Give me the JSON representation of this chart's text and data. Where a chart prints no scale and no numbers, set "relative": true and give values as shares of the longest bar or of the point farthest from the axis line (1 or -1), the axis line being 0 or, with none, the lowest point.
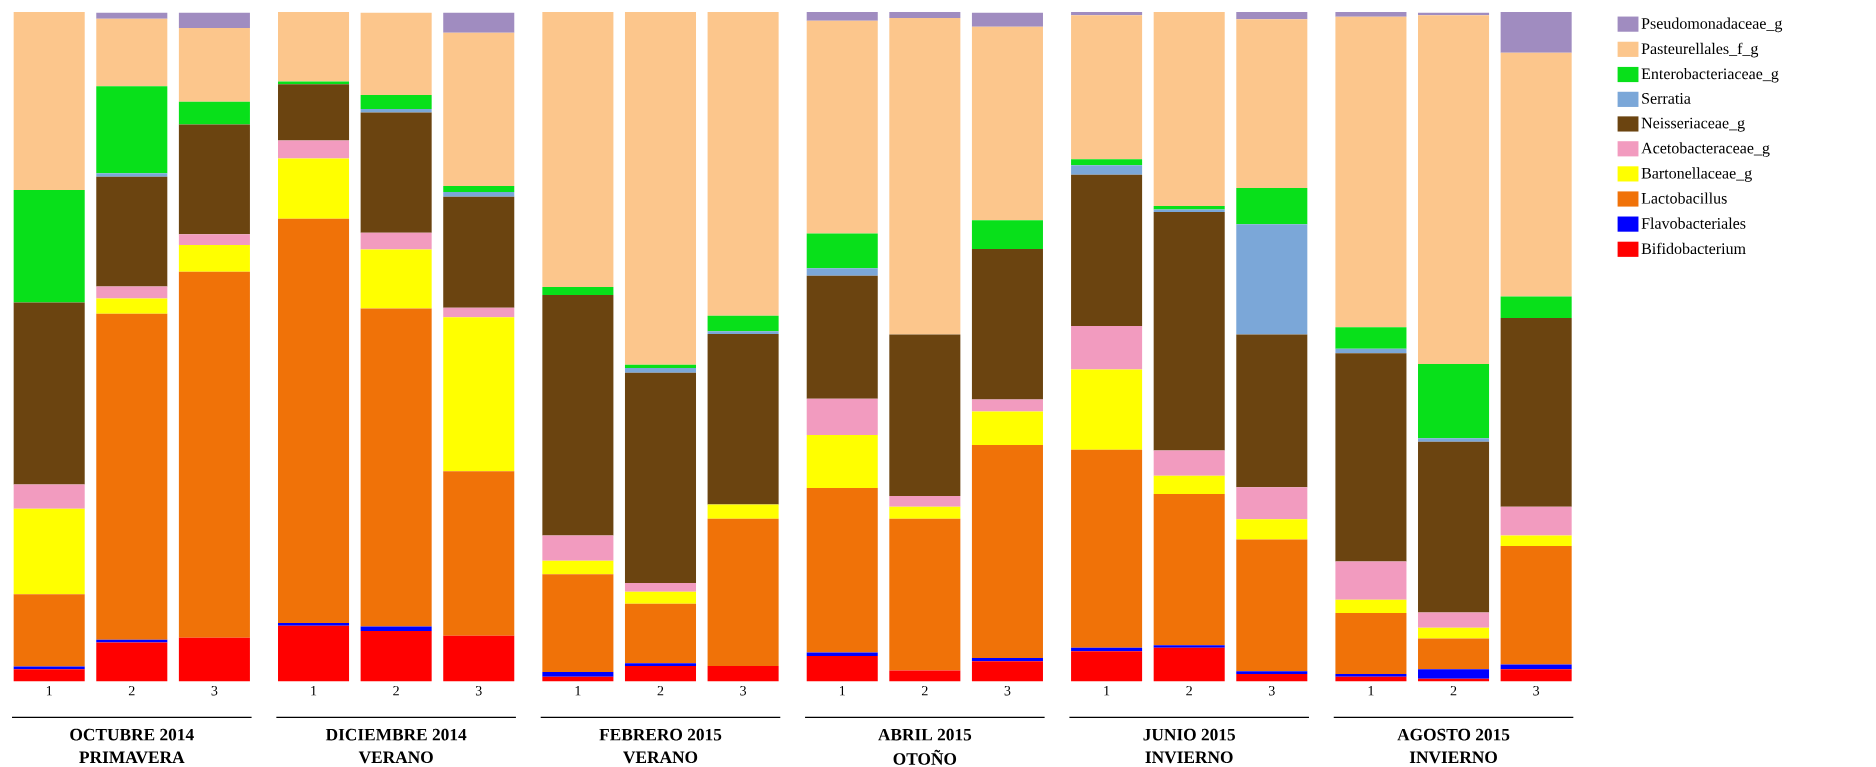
{
  "chart_data": {
    "type": "bar",
    "stacked": true,
    "relative": true,
    "legend": "top right",
    "categories": [
      "1",
      "2",
      "3",
      "1",
      "2",
      "3",
      "1",
      "2",
      "3",
      "1",
      "2",
      "3",
      "1",
      "2",
      "3",
      "1",
      "2",
      "3"
    ],
    "annotations": [
      "OCTUBRE 2014",
      "PRIMAVERA",
      "DICIEMBRE 2014",
      "VERANO",
      "FEBRERO 2015",
      "VERANO",
      "ABRIL 2015",
      "OTOÑO",
      "JUNIO 2015",
      "INVIERNO",
      "AGOSTO 2015",
      "INVIERNO"
    ],
    "series": [
      {
        "name": "Bifidobacterium",
        "color": "#ff0000",
        "values": [
          0.018,
          0.058,
          0.065,
          0.083,
          0.075,
          0.068,
          0.007,
          0.023,
          0.023,
          0.038,
          0.016,
          0.03,
          0.045,
          0.05,
          0.011,
          0.007,
          0.004,
          0.018
        ]
      },
      {
        "name": "Flavobacteriales",
        "color": "#0000ff",
        "values": [
          0.004,
          0.004,
          0,
          0.004,
          0.007,
          0,
          0.007,
          0.004,
          0,
          0.005,
          0,
          0.005,
          0.005,
          0.004,
          0.004,
          0.004,
          0.014,
          0.007
        ]
      },
      {
        "name": "Lactobacillus",
        "color": "#f07208",
        "values": [
          0.108,
          0.487,
          0.547,
          0.604,
          0.475,
          0.246,
          0.146,
          0.089,
          0.22,
          0.246,
          0.227,
          0.318,
          0.296,
          0.226,
          0.197,
          0.091,
          0.046,
          0.177
        ]
      },
      {
        "name": "Bartonellaceae_g",
        "color": "#ffff00",
        "values": [
          0.128,
          0.023,
          0.04,
          0.09,
          0.088,
          0.23,
          0.02,
          0.018,
          0.021,
          0.079,
          0.018,
          0.05,
          0.12,
          0.027,
          0.03,
          0.02,
          0.016,
          0.016
        ]
      },
      {
        "name": "Acetobacteraceae_g",
        "color": "#f29bbf",
        "values": [
          0.036,
          0.018,
          0.016,
          0.027,
          0.025,
          0.014,
          0.038,
          0.013,
          0,
          0.054,
          0.016,
          0.018,
          0.065,
          0.038,
          0.048,
          0.057,
          0.023,
          0.043
        ]
      },
      {
        "name": "Neisseriaceae_g",
        "color": "#6b4410",
        "values": [
          0.272,
          0.164,
          0.164,
          0.084,
          0.18,
          0.166,
          0.359,
          0.314,
          0.255,
          0.184,
          0.241,
          0.225,
          0.226,
          0.356,
          0.228,
          0.311,
          0.255,
          0.282
        ]
      },
      {
        "name": "Serratia",
        "color": "#7ba7d8",
        "values": [
          0,
          0.005,
          0,
          0,
          0.005,
          0.007,
          0,
          0.007,
          0.004,
          0.011,
          0,
          0,
          0.014,
          0.004,
          0.165,
          0.007,
          0.005,
          0
        ]
      },
      {
        "name": "Enterobacteriaceae_g",
        "color": "#08e01a",
        "values": [
          0.168,
          0.13,
          0.034,
          0.004,
          0.021,
          0.009,
          0.012,
          0.005,
          0.023,
          0.052,
          0,
          0.043,
          0.009,
          0.005,
          0.054,
          0.032,
          0.111,
          0.032
        ]
      },
      {
        "name": "Pasteurellales_f_g",
        "color": "#fcc68c",
        "values": [
          0.266,
          0.101,
          0.11,
          0.104,
          0.123,
          0.229,
          0.411,
          0.527,
          0.454,
          0.318,
          0.473,
          0.289,
          0.215,
          0.29,
          0.252,
          0.464,
          0.521,
          0.364
        ]
      },
      {
        "name": "Pseudomonadaceae_g",
        "color": "#a08cc0",
        "values": [
          0,
          0.009,
          0.023,
          0,
          0,
          0.03,
          0,
          0,
          0,
          0.013,
          0.009,
          0.021,
          0.005,
          0,
          0.011,
          0.007,
          0.004,
          0.061
        ]
      }
    ]
  }
}
